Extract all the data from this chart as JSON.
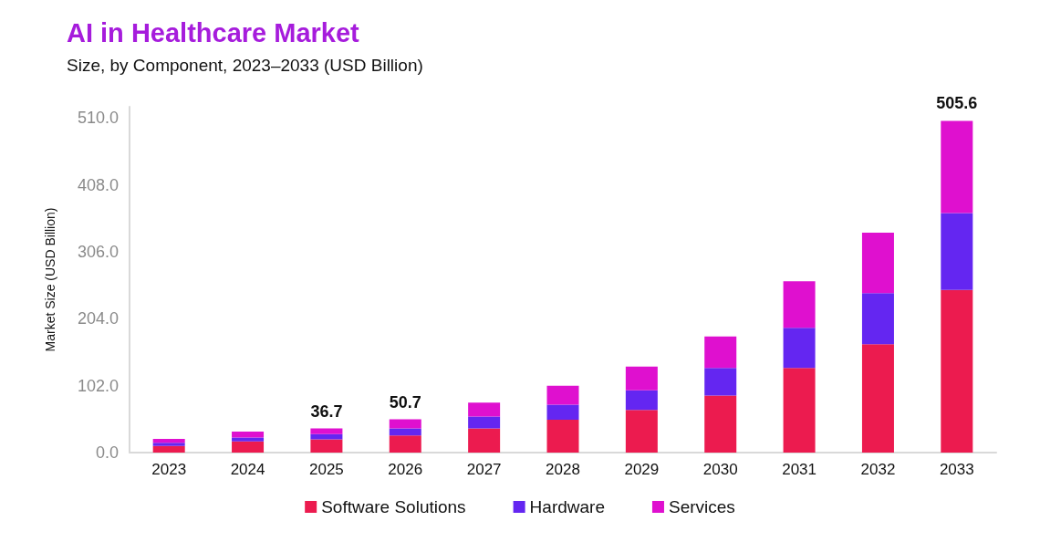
{
  "chart_data": {
    "type": "bar",
    "title": "AI in Healthcare Market",
    "subtitle": "Size, by Component, 2023–2033 (USD Billion)",
    "ylabel": "Market Size (USD Billion)",
    "categories": [
      "2023",
      "2024",
      "2025",
      "2026",
      "2027",
      "2028",
      "2029",
      "2030",
      "2031",
      "2032",
      "2033"
    ],
    "series": [
      {
        "name": "Software Solutions",
        "color": "#ec1b4f",
        "values": [
          10,
          17,
          20,
          26,
          37,
          50,
          65,
          87,
          129,
          165,
          248
        ]
      },
      {
        "name": "Hardware",
        "color": "#6426f1",
        "values": [
          5,
          6,
          8,
          11,
          18,
          23,
          30,
          42,
          61,
          78,
          117
        ]
      },
      {
        "name": "Services",
        "color": "#df10cf",
        "values": [
          6,
          9,
          8.7,
          13.7,
          21,
          29,
          36,
          48,
          71,
          92,
          140.6
        ]
      }
    ],
    "stacked": true,
    "totals": [
      null,
      null,
      "36.7",
      "50.7",
      null,
      null,
      null,
      null,
      null,
      null,
      "505.6"
    ],
    "ylim": [
      0,
      527
    ],
    "yticks": [
      {
        "value": 0,
        "label": "0.0"
      },
      {
        "value": 102,
        "label": "102.0"
      },
      {
        "value": 204,
        "label": "204.0"
      },
      {
        "value": 306,
        "label": "306.0"
      },
      {
        "value": 408,
        "label": "408.0"
      },
      {
        "value": 510,
        "label": "510.0"
      }
    ],
    "grid": false,
    "legend": "bottom"
  }
}
